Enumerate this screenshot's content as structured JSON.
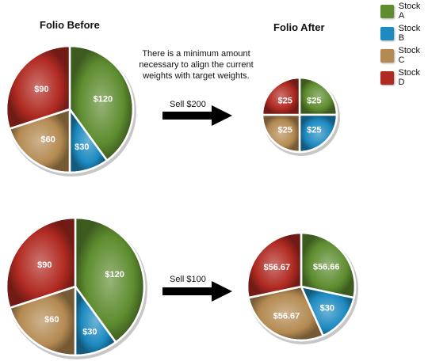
{
  "headings": {
    "before": "Folio Before",
    "after": "Folio After"
  },
  "note": "There is a minimum amount\nnecessary to align the current\nweights with target weights.",
  "sell_labels": [
    "Sell $200",
    "Sell $100"
  ],
  "legend": [
    {
      "label": "Stock A",
      "color": "#5e8c2f"
    },
    {
      "label": "Stock B",
      "color": "#1d8ac0"
    },
    {
      "label": "Stock C",
      "color": "#b48a52"
    },
    {
      "label": "Stock D",
      "color": "#b02a22"
    }
  ],
  "chart_data": [
    {
      "type": "pie",
      "title": "Folio Before",
      "categories": [
        "Stock A",
        "Stock B",
        "Stock C",
        "Stock D"
      ],
      "values": [
        120,
        30,
        60,
        90
      ],
      "labels": [
        "$120",
        "$30",
        "$60",
        "$90"
      ]
    },
    {
      "type": "pie",
      "title": "Folio After",
      "categories": [
        "Stock A",
        "Stock B",
        "Stock C",
        "Stock D"
      ],
      "values": [
        25,
        25,
        25,
        25
      ],
      "labels": [
        "$25",
        "$25",
        "$25",
        "$25"
      ]
    },
    {
      "type": "pie",
      "categories": [
        "Stock A",
        "Stock B",
        "Stock C",
        "Stock D"
      ],
      "values": [
        120,
        30,
        60,
        90
      ],
      "labels": [
        "$120",
        "$30",
        "$60",
        "$90"
      ]
    },
    {
      "type": "pie",
      "categories": [
        "Stock A",
        "Stock B",
        "Stock C",
        "Stock D"
      ],
      "values": [
        56.66,
        30,
        56.67,
        56.67
      ],
      "labels": [
        "$56.66",
        "$30",
        "$56.67",
        "$56.67"
      ]
    }
  ]
}
